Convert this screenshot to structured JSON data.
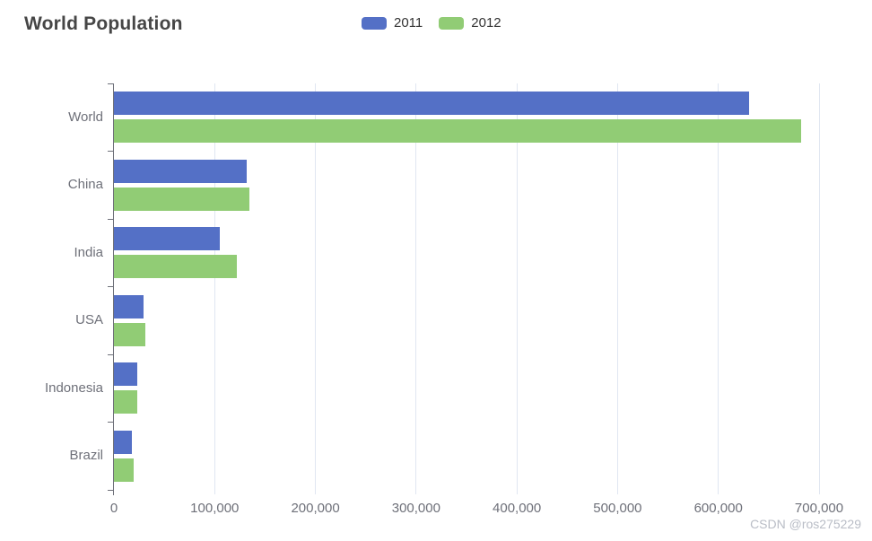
{
  "title": "World Population",
  "watermark": "CSDN @ros275229",
  "colors": {
    "series_2011": "#5470c6",
    "series_2012": "#91cc75",
    "title_text": "#464646",
    "axis_text": "#6e7079",
    "gridline": "#e0e6f1",
    "axis_line": "#6e7079",
    "legend_text": "#333333",
    "watermark_text": "#b9bdc6"
  },
  "legend": [
    {
      "label": "2011",
      "color": "#5470c6"
    },
    {
      "label": "2012",
      "color": "#91cc75"
    }
  ],
  "chart_data": {
    "type": "bar",
    "orientation": "horizontal",
    "title": "World Population",
    "categories": [
      "World",
      "China",
      "India",
      "USA",
      "Indonesia",
      "Brazil"
    ],
    "series": [
      {
        "name": "2011",
        "color": "#5470c6",
        "values": [
          630230,
          131744,
          104970,
          29034,
          23489,
          18203
        ]
      },
      {
        "name": "2012",
        "color": "#91cc75",
        "values": [
          681807,
          134141,
          121594,
          31000,
          23438,
          19325
        ]
      }
    ],
    "xlim": [
      0,
      700000
    ],
    "x_ticks": [
      0,
      100000,
      200000,
      300000,
      400000,
      500000,
      600000,
      700000
    ],
    "x_tick_labels": [
      "0",
      "100,000",
      "200,000",
      "300,000",
      "400,000",
      "500,000",
      "600,000",
      "700,000"
    ],
    "xlabel": "",
    "ylabel": "",
    "grid": true,
    "legend_position": "top-center"
  }
}
